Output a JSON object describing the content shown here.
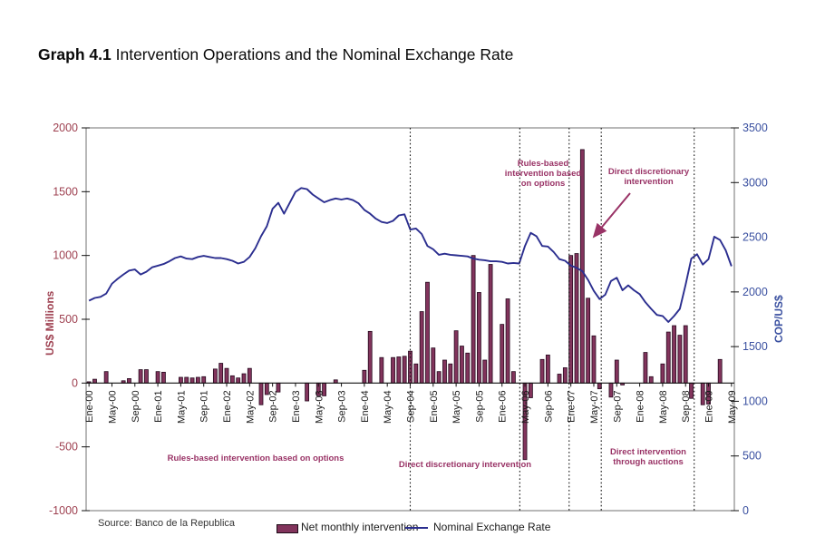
{
  "page": {
    "title_prefix": "Graph 4.1",
    "title_rest": "Intervention Operations and the Nominal Exchange Rate",
    "source": "Source: Banco de la Republica"
  },
  "legend": {
    "bar_label": "Net monthly intervention",
    "line_label": "Nominal Exchange Rate"
  },
  "axes": {
    "left_title": "US$ Millions",
    "right_title": "COP/US$"
  },
  "annotations": {
    "top_rules": "Rules-based intervention based on options",
    "top_direct": "Direct discretionary intervention",
    "bottom_rules": "Rules-based intervention based on options",
    "bottom_direct": "Direct discretionary intervention",
    "bottom_auctions": "Direct intervention through auctions"
  },
  "colors": {
    "bar_fill": "#82345c",
    "bar_stroke": "#26091e",
    "line": "#2b2e8f",
    "left_axis_text": "#9e4050",
    "right_axis_text": "#3a50a0",
    "annotation": "#993366",
    "plot_border": "#707070",
    "axis_line": "#111111"
  },
  "chart_data": {
    "type": "bar+line combo",
    "x_unit": "month",
    "n_months": 113,
    "x_start": "Ene-00",
    "x_end": "May-09",
    "x_tick_every": 4,
    "x_tick_labels": [
      "Ene-00",
      "May-00",
      "Sep-00",
      "Ene-01",
      "May-01",
      "Sep-01",
      "Ene-02",
      "May-02",
      "Sep-02",
      "Ene-03",
      "May-03",
      "Sep-03",
      "Ene-04",
      "May-04",
      "Sep-04",
      "Ene-05",
      "May-05",
      "Sep-05",
      "Ene-06",
      "May-06",
      "Sep-06",
      "Ene-07",
      "May-07",
      "Sep-07",
      "Ene-08",
      "May-08",
      "Sep-08",
      "Ene-09",
      "May-09"
    ],
    "left_axis": {
      "label": "US$ Millions",
      "ylim": [
        -1000,
        2000
      ],
      "ticks": [
        2000,
        1500,
        1000,
        500,
        0,
        -500,
        -1000
      ]
    },
    "right_axis": {
      "label": "COP/US$",
      "ylim": [
        0,
        3500
      ],
      "ticks": [
        3500,
        3000,
        2500,
        2000,
        1500,
        1000,
        500,
        0
      ]
    },
    "grid": false,
    "legend_position": "bottom",
    "dotted_line_positions_month": [
      56.5,
      75.6,
      84.2,
      89.8,
      106.0
    ],
    "series": [
      {
        "name": "Net monthly intervention",
        "type": "bar",
        "axis": "left",
        "unit": "US$ Millions",
        "values": [
          10,
          30,
          0,
          90,
          0,
          0,
          18,
          35,
          0,
          105,
          105,
          0,
          90,
          85,
          0,
          0,
          45,
          45,
          40,
          45,
          50,
          0,
          110,
          155,
          115,
          57,
          40,
          73,
          115,
          0,
          -170,
          -90,
          0,
          -70,
          0,
          0,
          0,
          0,
          -140,
          0,
          -100,
          -100,
          0,
          25,
          0,
          0,
          0,
          0,
          100,
          405,
          0,
          200,
          0,
          200,
          205,
          210,
          250,
          150,
          560,
          790,
          275,
          90,
          180,
          150,
          410,
          290,
          235,
          1000,
          710,
          180,
          930,
          0,
          460,
          660,
          90,
          0,
          -600,
          -115,
          0,
          185,
          220,
          0,
          70,
          120,
          1000,
          1015,
          1830,
          665,
          370,
          -45,
          0,
          -110,
          180,
          -15,
          0,
          0,
          0,
          240,
          50,
          0,
          150,
          400,
          450,
          375,
          450,
          -120,
          0,
          -170,
          -165,
          0,
          185,
          0,
          0
        ]
      },
      {
        "name": "Nominal Exchange Rate",
        "type": "line",
        "axis": "right",
        "unit": "COP/US$",
        "values": [
          1920,
          1945,
          1955,
          1985,
          2075,
          2120,
          2160,
          2195,
          2205,
          2160,
          2185,
          2225,
          2240,
          2255,
          2280,
          2310,
          2325,
          2305,
          2300,
          2320,
          2330,
          2320,
          2310,
          2310,
          2300,
          2285,
          2260,
          2275,
          2320,
          2400,
          2510,
          2600,
          2760,
          2815,
          2715,
          2815,
          2915,
          2950,
          2940,
          2890,
          2855,
          2820,
          2840,
          2855,
          2845,
          2855,
          2840,
          2810,
          2750,
          2715,
          2670,
          2640,
          2630,
          2650,
          2700,
          2710,
          2570,
          2580,
          2530,
          2420,
          2390,
          2340,
          2350,
          2340,
          2335,
          2330,
          2325,
          2305,
          2295,
          2290,
          2280,
          2280,
          2275,
          2260,
          2265,
          2260,
          2420,
          2540,
          2510,
          2420,
          2415,
          2365,
          2300,
          2285,
          2240,
          2220,
          2190,
          2110,
          2010,
          1935,
          1975,
          2100,
          2130,
          2015,
          2060,
          2015,
          1980,
          1905,
          1845,
          1790,
          1780,
          1725,
          1780,
          1845,
          2065,
          2305,
          2345,
          2250,
          2300,
          2505,
          2475,
          2380,
          2235
        ]
      }
    ]
  }
}
